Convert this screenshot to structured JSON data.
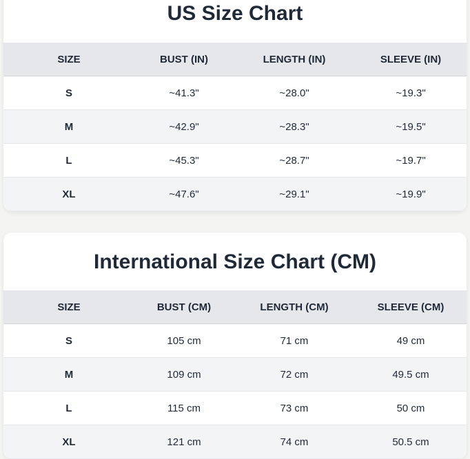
{
  "us_chart": {
    "title": "US Size Chart",
    "headers": [
      "SIZE",
      "BUST (IN)",
      "LENGTH (IN)",
      "SLEEVE (IN)"
    ],
    "rows": [
      [
        "S",
        "~41.3\"",
        "~28.0\"",
        "~19.3\""
      ],
      [
        "M",
        "~42.9\"",
        "~28.3\"",
        "~19.5\""
      ],
      [
        "L",
        "~45.3\"",
        "~28.7\"",
        "~19.7\""
      ],
      [
        "XL",
        "~47.6\"",
        "~29.1\"",
        "~19.9\""
      ]
    ]
  },
  "intl_chart": {
    "title": "International Size Chart (CM)",
    "headers": [
      "SIZE",
      "BUST (CM)",
      "LENGTH (CM)",
      "SLEEVE (CM)"
    ],
    "rows": [
      [
        "S",
        "105 cm",
        "71 cm",
        "49 cm"
      ],
      [
        "M",
        "109 cm",
        "72 cm",
        "49.5 cm"
      ],
      [
        "L",
        "115 cm",
        "73 cm",
        "50 cm"
      ],
      [
        "XL",
        "121 cm",
        "74 cm",
        "50.5 cm"
      ]
    ]
  }
}
